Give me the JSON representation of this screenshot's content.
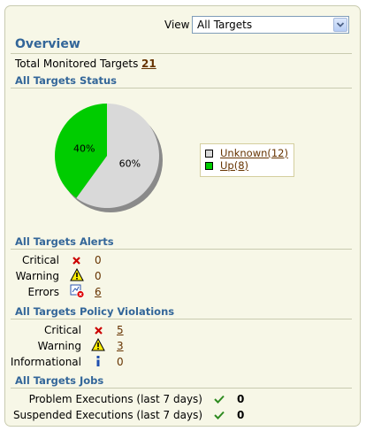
{
  "view": {
    "label": "View",
    "selected": "All Targets"
  },
  "overview": {
    "title": "Overview",
    "total_label": "Total Monitored Targets",
    "total_value": "21"
  },
  "status": {
    "title": "All Targets Status",
    "legend": [
      {
        "label": "Unknown(12)",
        "color": "#d9d9d9"
      },
      {
        "label": "Up(8)",
        "color": "#00cc00"
      }
    ]
  },
  "chart_data": {
    "type": "pie",
    "categories": [
      "Unknown",
      "Up"
    ],
    "values": [
      12,
      8
    ],
    "slice_labels": [
      "60%",
      "40%"
    ],
    "colors": [
      "#d9d9d9",
      "#00cc00"
    ]
  },
  "alerts": {
    "title": "All Targets Alerts",
    "rows": [
      {
        "label": "Critical",
        "icon": "critical-x-icon",
        "value": "0"
      },
      {
        "label": "Warning",
        "icon": "warning-icon",
        "value": "0"
      },
      {
        "label": "Errors",
        "icon": "error-icon",
        "value": "6"
      }
    ]
  },
  "policy": {
    "title": "All Targets Policy Violations",
    "rows": [
      {
        "label": "Critical",
        "icon": "critical-x-icon",
        "value": "5"
      },
      {
        "label": "Warning",
        "icon": "warning-icon",
        "value": "3"
      },
      {
        "label": "Informational",
        "icon": "info-icon",
        "value": "0"
      }
    ]
  },
  "jobs": {
    "title": "All Targets Jobs",
    "rows": [
      {
        "label": "Problem Executions (last 7 days)",
        "icon": "checkmark-icon",
        "value": "0"
      },
      {
        "label": "Suspended Executions (last 7 days)",
        "icon": "checkmark-icon",
        "value": "0"
      }
    ]
  }
}
